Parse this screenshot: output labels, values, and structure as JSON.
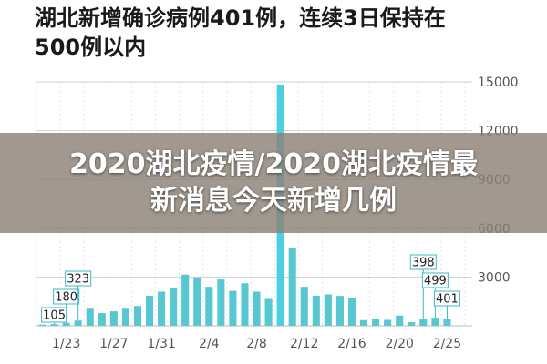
{
  "headline": {
    "line1": "湖北新增确诊病例401例，连续3日保持在",
    "line2": "500例以内"
  },
  "banner": {
    "line1": "2020湖北疫情/2020湖北疫情最",
    "line2": "新消息今天新增几例"
  },
  "colors": {
    "bar": "#57c8d2",
    "highlight": "#4ccfe0",
    "callout_border": "#3fb8c6",
    "grid": "#cfcfcf",
    "banner_bg": "#8c8278"
  },
  "chart_data": {
    "type": "bar",
    "x_tick_labels": [
      "1/23",
      "1/27",
      "1/31",
      "2/4",
      "2/8",
      "2/12",
      "2/16",
      "2/20",
      "2/25"
    ],
    "y_tick_labels": [
      "0",
      "3000",
      "6000",
      "9000",
      "12000",
      "15000"
    ],
    "ylim": [
      0,
      15000
    ],
    "grid": true,
    "categories": [
      "1/21",
      "1/22",
      "1/23",
      "1/24",
      "1/25",
      "1/26",
      "1/27",
      "1/28",
      "1/29",
      "1/30",
      "1/31",
      "2/1",
      "2/2",
      "2/3",
      "2/4",
      "2/5",
      "2/6",
      "2/7",
      "2/8",
      "2/9",
      "2/10",
      "2/11",
      "2/12",
      "2/13",
      "2/14",
      "2/15",
      "2/16",
      "2/17",
      "2/18",
      "2/19",
      "2/20",
      "2/21",
      "2/22",
      "2/23",
      "2/24",
      "2/25"
    ],
    "values": [
      72,
      105,
      180,
      323,
      1050,
      780,
      890,
      1050,
      1220,
      1850,
      2100,
      2330,
      3150,
      2980,
      2400,
      2850,
      2150,
      2620,
      2100,
      1650,
      14840,
      4820,
      2400,
      1850,
      1930,
      1840,
      1690,
      349,
      411,
      366,
      630,
      227,
      398,
      499,
      401,
      0
    ],
    "highlight_index": 20,
    "annotations": [
      {
        "label": "105",
        "index": 1
      },
      {
        "label": "180",
        "index": 2
      },
      {
        "label": "323",
        "index": 3
      },
      {
        "label": "398",
        "index": 32
      },
      {
        "label": "499",
        "index": 33
      },
      {
        "label": "401",
        "index": 34
      }
    ]
  }
}
